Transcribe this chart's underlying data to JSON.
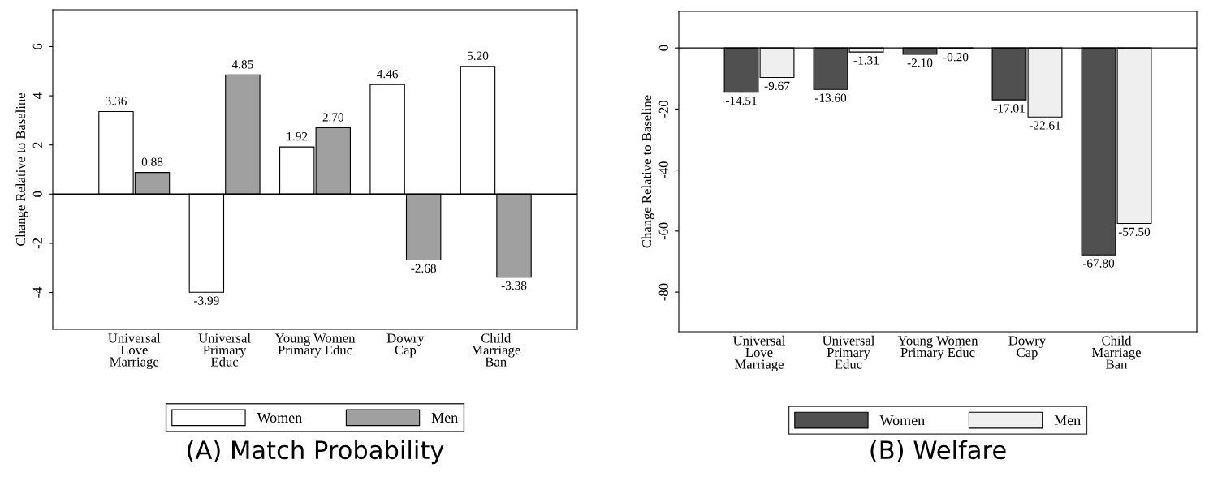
{
  "chart_data": [
    {
      "type": "bar",
      "title": "(A) Match Probability",
      "ylabel": "Change Relative to Baseline",
      "categories": [
        "Universal\nLove\nMarriage",
        "Universal\nPrimary\nEduc",
        "Young Women\nPrimary Educ",
        "Dowry\nCap",
        "Child\nMarriage\nBan"
      ],
      "series": [
        {
          "name": "Women",
          "color": "#ffffff",
          "values": [
            3.36,
            -3.99,
            1.92,
            4.46,
            5.2
          ],
          "value_labels": [
            "3.36",
            "-3.99",
            "1.92",
            "4.46",
            "5.20"
          ]
        },
        {
          "name": "Men",
          "color": "#a0a0a0",
          "values": [
            0.88,
            4.85,
            2.7,
            -2.68,
            -3.38
          ],
          "value_labels": [
            "0.88",
            "4.85",
            "2.70",
            "-2.68",
            "-3.38"
          ]
        }
      ],
      "ylim": [
        -5.5,
        7.5
      ],
      "yticks": [
        -4,
        -2,
        0,
        2,
        4,
        6
      ],
      "grid": false,
      "legend": "bottom",
      "ref_lines": [
        {
          "axis": "y",
          "value": 0,
          "color": "#000000"
        }
      ]
    },
    {
      "type": "bar",
      "title": "(B) Welfare",
      "ylabel": "Change Relative to Baseline",
      "categories": [
        "Universal\nLove\nMarriage",
        "Universal\nPrimary\nEduc",
        "Young Women\nPrimary Educ",
        "Dowry\nCap",
        "Child\nMarriage\nBan"
      ],
      "series": [
        {
          "name": "Women",
          "color": "#505050",
          "values": [
            -14.51,
            -13.6,
            -2.1,
            -17.01,
            -67.8
          ],
          "value_labels": [
            "-14.51",
            "-13.60",
            "-2.10",
            "-17.01",
            "-67.80"
          ]
        },
        {
          "name": "Men",
          "color": "#efefef",
          "values": [
            -9.67,
            -1.31,
            -0.2,
            -22.61,
            -57.5
          ],
          "value_labels": [
            "-9.67",
            "-1.31",
            "-0.20",
            "-22.61",
            "-57.50"
          ]
        }
      ],
      "ylim": [
        -93,
        12
      ],
      "yticks": [
        -80,
        -60,
        -40,
        -20,
        0
      ],
      "grid": false,
      "legend": "bottom",
      "ref_lines": [
        {
          "axis": "y",
          "value": 0,
          "color": "#000000"
        }
      ]
    }
  ]
}
